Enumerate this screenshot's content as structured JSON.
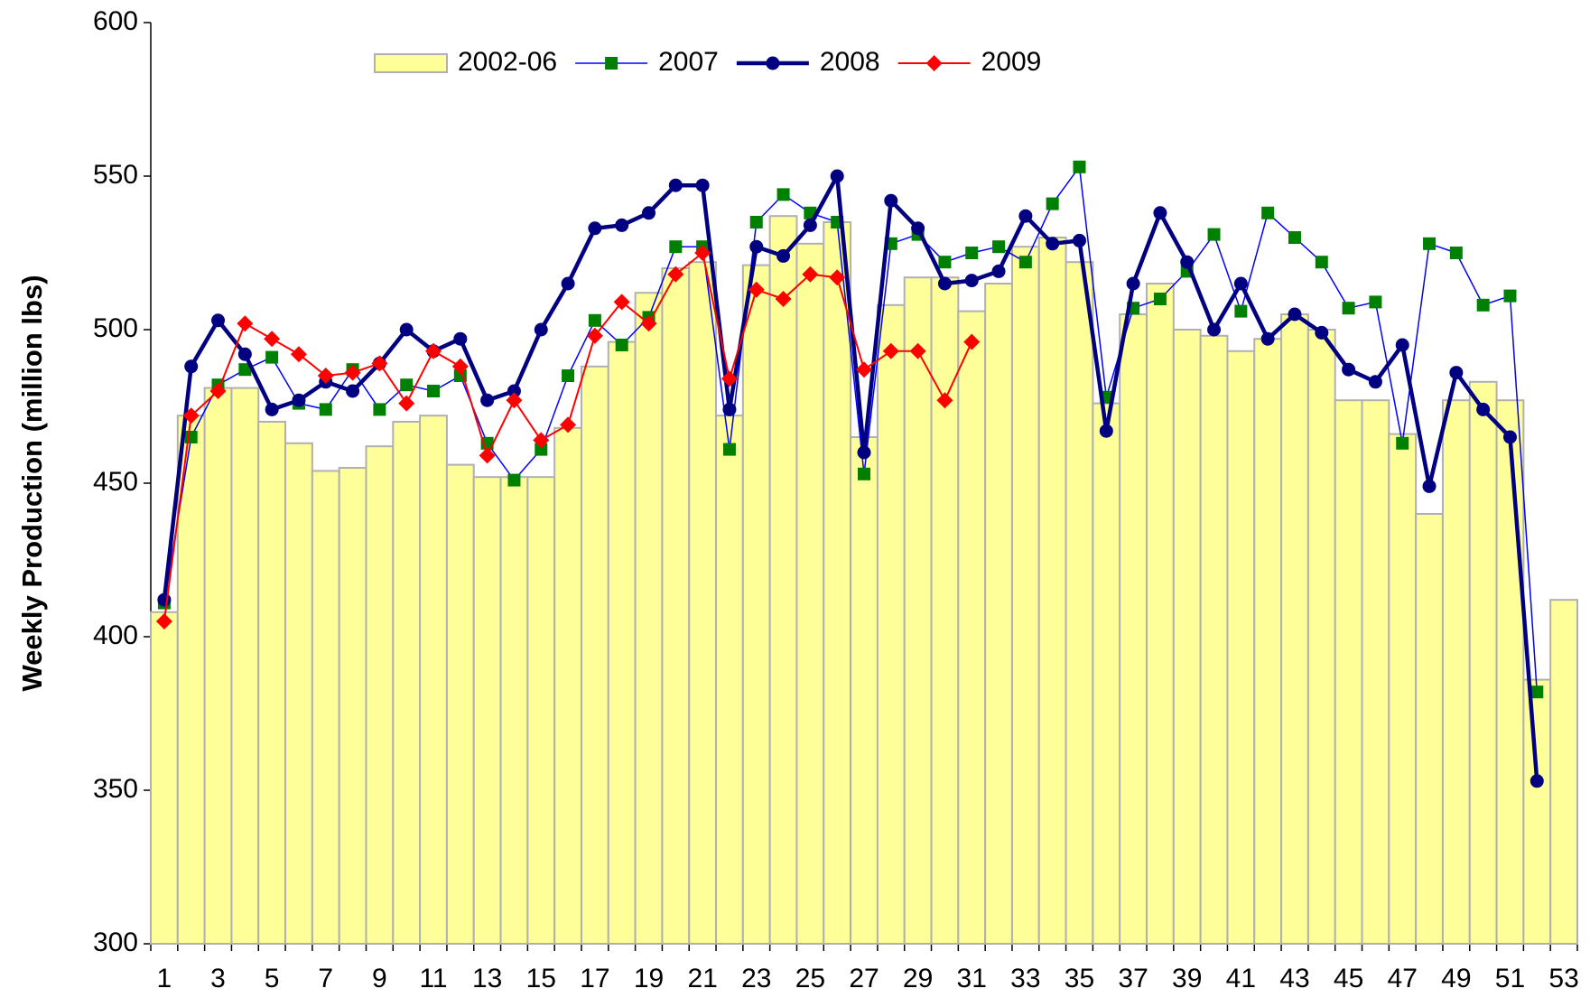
{
  "chart_data": {
    "type": "bar",
    "y_label": "Weekly Production (million lbs)",
    "categories": [
      "1",
      null,
      "3",
      null,
      "5",
      null,
      "7",
      null,
      "9",
      null,
      "11",
      null,
      "13",
      null,
      "15",
      null,
      "17",
      null,
      "19",
      null,
      "21",
      null,
      "23",
      null,
      "25",
      null,
      "27",
      null,
      "29",
      null,
      "31",
      null,
      "33",
      null,
      "35",
      null,
      "37",
      null,
      "39",
      null,
      "41",
      null,
      "43",
      null,
      "45",
      null,
      "47",
      null,
      "49",
      null,
      "51",
      null,
      "53"
    ],
    "series": [
      {
        "name": "2002-06",
        "type": "bar",
        "color": "#ffff99",
        "edge_color": "#b0b0b0",
        "values": [
          408,
          472,
          481,
          481,
          470,
          463,
          454,
          455,
          462,
          470,
          472,
          456,
          452,
          452,
          452,
          468,
          488,
          496,
          512,
          520,
          522,
          472,
          521,
          537,
          528,
          535,
          465,
          508,
          517,
          517,
          506,
          515,
          527,
          530,
          522,
          476,
          505,
          515,
          500,
          498,
          493,
          497,
          505,
          500,
          477,
          477,
          466,
          440,
          477,
          483,
          477,
          386,
          412
        ]
      },
      {
        "name": "2007",
        "type": "line",
        "marker": "square",
        "color": "#0000ff",
        "marker_color": "#008000",
        "values": [
          411,
          465,
          482,
          487,
          491,
          476,
          474,
          487,
          474,
          482,
          480,
          485,
          463,
          451,
          461,
          485,
          503,
          495,
          504,
          527,
          527,
          461,
          535,
          544,
          538,
          535,
          453,
          528,
          531,
          522,
          525,
          527,
          522,
          541,
          553,
          478,
          507,
          510,
          519,
          531,
          506,
          538,
          530,
          522,
          507,
          509,
          463,
          528,
          525,
          508,
          511,
          382,
          null
        ]
      },
      {
        "name": "2008",
        "type": "line",
        "marker": "circle",
        "color": "#000080",
        "marker_color": "#000080",
        "values": [
          412,
          488,
          503,
          492,
          474,
          477,
          483,
          480,
          489,
          500,
          493,
          497,
          477,
          480,
          500,
          515,
          533,
          534,
          538,
          547,
          547,
          474,
          527,
          524,
          534,
          550,
          460,
          542,
          533,
          515,
          516,
          519,
          537,
          528,
          529,
          467,
          515,
          538,
          522,
          500,
          515,
          497,
          505,
          499,
          487,
          483,
          495,
          449,
          486,
          474,
          465,
          353,
          null
        ]
      },
      {
        "name": "2009",
        "type": "line",
        "marker": "diamond",
        "color": "#ff0000",
        "marker_color": "#ff0000",
        "values": [
          405,
          472,
          480,
          502,
          497,
          492,
          485,
          486,
          489,
          476,
          493,
          488,
          459,
          477,
          464,
          469,
          498,
          509,
          502,
          518,
          525,
          484,
          513,
          510,
          518,
          517,
          487,
          493,
          493,
          477,
          496,
          null,
          null,
          null,
          null,
          null,
          null,
          null,
          null,
          null,
          null,
          null,
          null,
          null,
          null,
          null,
          null,
          null,
          null,
          null,
          null,
          null,
          null
        ]
      }
    ],
    "ylim": [
      300,
      600
    ],
    "yticks": [
      300,
      350,
      400,
      450,
      500,
      550,
      600
    ],
    "grid": false,
    "legend": "top"
  }
}
